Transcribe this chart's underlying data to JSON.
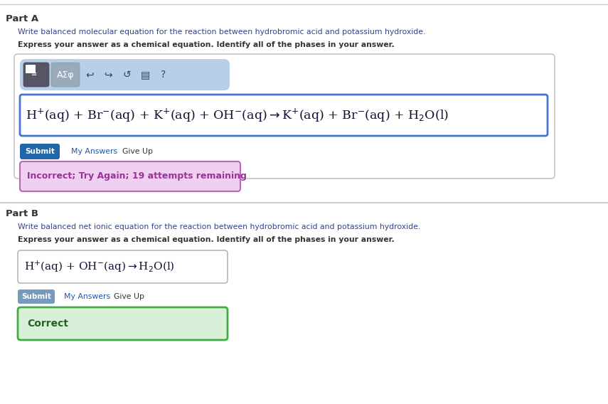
{
  "bg_color": "#ffffff",
  "part_a_label": "Part A",
  "part_a_desc": "Write balanced molecular equation for the reaction between hydrobromic acid and potassium hydroxide.",
  "part_a_express": "Express your answer as a chemical equation. Identify all of the phases in your answer.",
  "submit_text": "Submit",
  "my_answers_text": "My Answers",
  "give_up_text": "Give Up",
  "incorrect_text": "Incorrect; Try Again; 19 attempts remaining",
  "incorrect_bg": "#f0d0f0",
  "incorrect_border": "#bb66bb",
  "incorrect_text_color": "#993399",
  "part_b_label": "Part B",
  "part_b_desc": "Write balanced net ionic equation for the reaction between hydrobromic acid and potassium hydroxide.",
  "part_b_express": "Express your answer as a chemical equation. Identify all of the phases in your answer.",
  "correct_text": "Correct",
  "correct_bg": "#d8f0d8",
  "correct_border": "#44aa44",
  "correct_text_color": "#226622",
  "toolbar_bg": "#b8cfe8",
  "input_border_a": "#4477cc",
  "input_border_b": "#aaaaaa",
  "submit_color_a": "#2266aa",
  "submit_color_b": "#7799bb",
  "separator_color": "#cccccc",
  "font_color_main": "#333333",
  "font_color_desc": "#333333",
  "font_color_link": "#2255aa",
  "toolbar_dark_bg": "#666666",
  "toolbar_light_bg": "#aabbcc"
}
